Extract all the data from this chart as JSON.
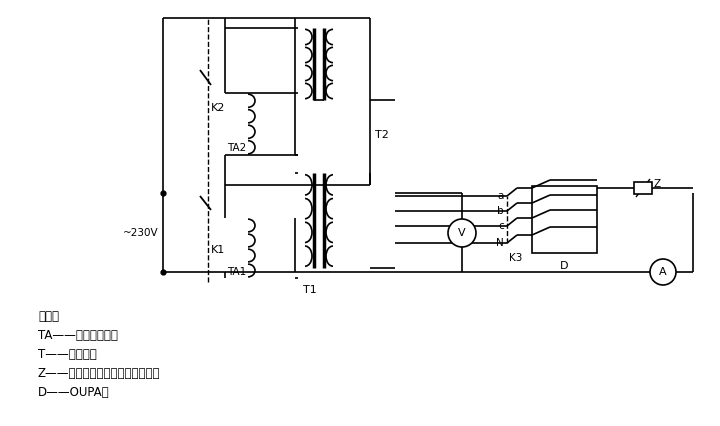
{
  "bg_color": "#ffffff",
  "fig_width": 7.2,
  "fig_height": 4.26,
  "dpi": 100,
  "legend_lines": [
    "说明：",
    "TA——自耦变压器；",
    "T——变压器；",
    "Z——调节电流至额定电流的阻抗；",
    "D——OUPA。"
  ]
}
